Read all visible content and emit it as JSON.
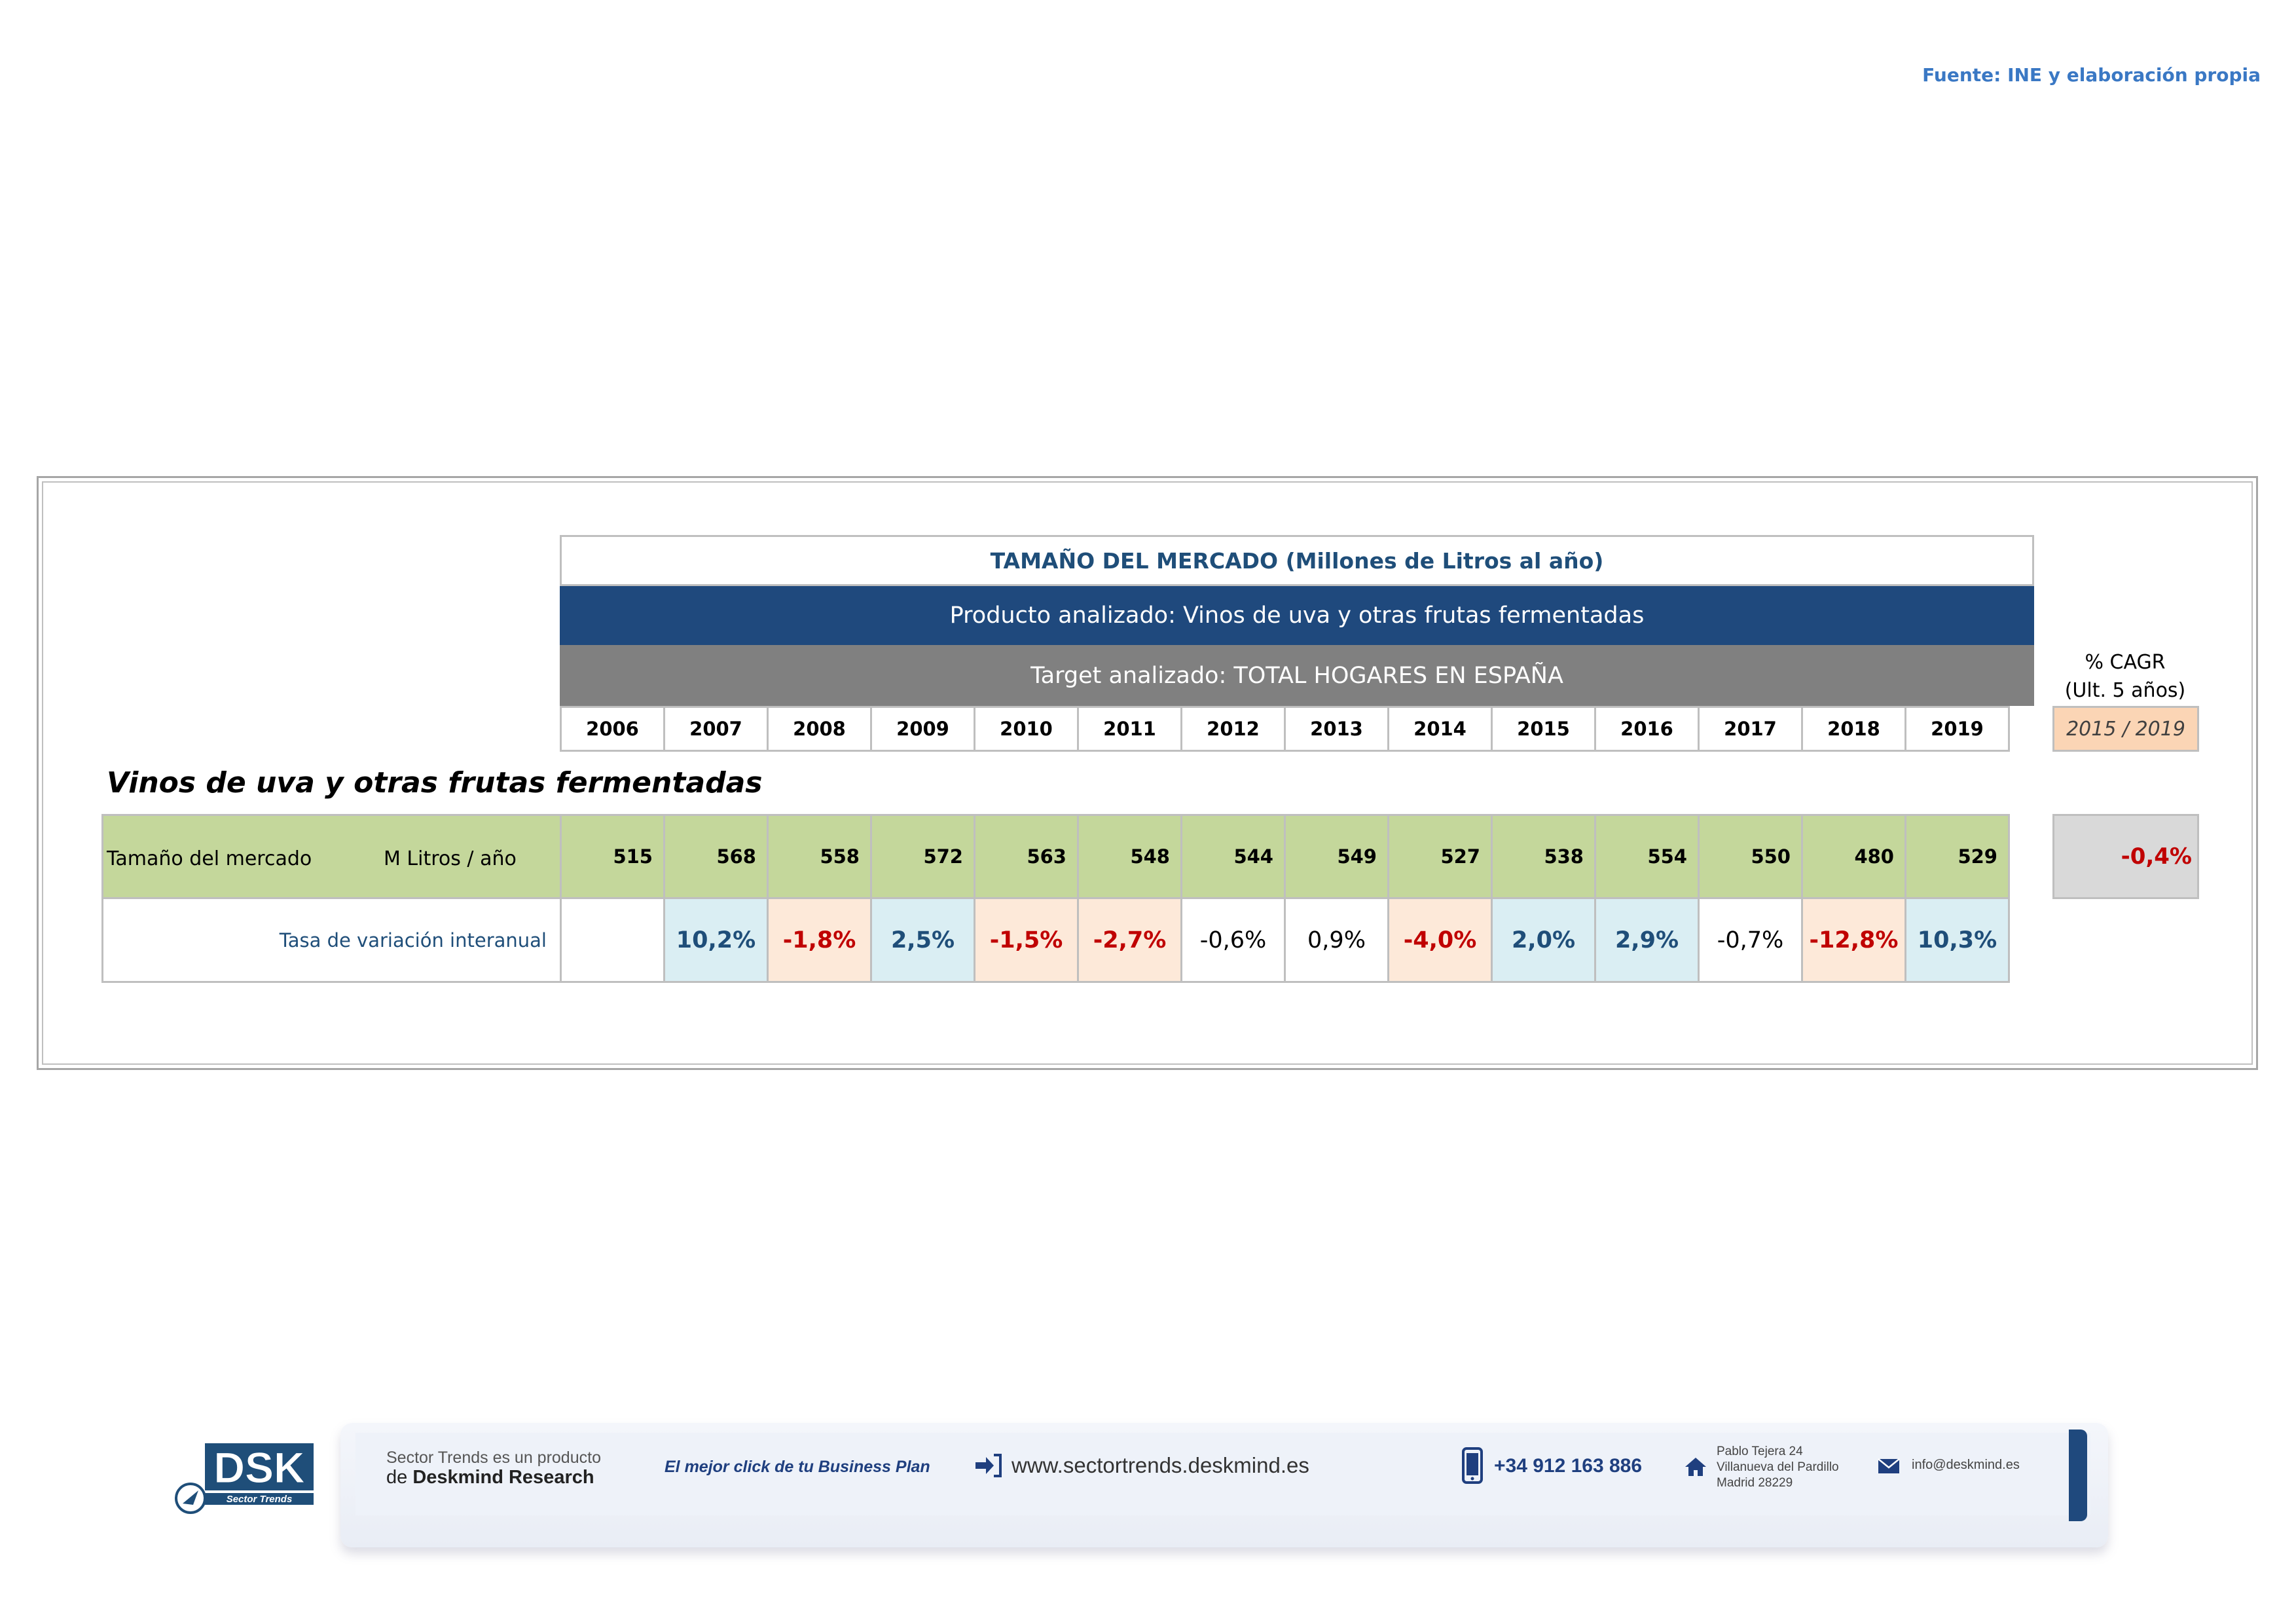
{
  "source": "Fuente: INE y elaboración propia",
  "table": {
    "title": "TAMAÑO DEL MERCADO (Millones de Litros al año)",
    "product": "Producto analizado: Vinos de uva y otras frutas fermentadas",
    "target": "Target analizado: TOTAL HOGARES EN ESPAÑA",
    "years": [
      "2006",
      "2007",
      "2008",
      "2009",
      "2010",
      "2011",
      "2012",
      "2013",
      "2014",
      "2015",
      "2016",
      "2017",
      "2018",
      "2019"
    ],
    "cagr_label_line1": "% CAGR",
    "cagr_label_line2": "(Ult. 5 años)",
    "cagr_period": "2015 / 2019",
    "section_title": "Vinos de uva y otras frutas fermentadas",
    "size_row": {
      "label": "Tamaño del mercado",
      "unit": "M Litros / año",
      "values": [
        "515",
        "568",
        "558",
        "572",
        "563",
        "548",
        "544",
        "549",
        "527",
        "538",
        "554",
        "550",
        "480",
        "529"
      ],
      "cagr": "-0,4%"
    },
    "variation_row": {
      "label": "Tasa de variación interanual",
      "values": [
        {
          "text": "",
          "kind": "empty"
        },
        {
          "text": "10,2%",
          "kind": "pos"
        },
        {
          "text": "-1,8%",
          "kind": "neg"
        },
        {
          "text": "2,5%",
          "kind": "pos"
        },
        {
          "text": "-1,5%",
          "kind": "neg"
        },
        {
          "text": "-2,7%",
          "kind": "neg"
        },
        {
          "text": "-0,6%",
          "kind": "neutral"
        },
        {
          "text": "0,9%",
          "kind": "neutral"
        },
        {
          "text": "-4,0%",
          "kind": "neg"
        },
        {
          "text": "2,0%",
          "kind": "pos"
        },
        {
          "text": "2,9%",
          "kind": "pos"
        },
        {
          "text": "-0,7%",
          "kind": "neutral"
        },
        {
          "text": "-12,8%",
          "kind": "neg"
        },
        {
          "text": "10,3%",
          "kind": "pos"
        }
      ]
    }
  },
  "footer": {
    "logo_text": "DSK",
    "logo_subtext": "Sector Trends",
    "product_line": "Sector Trends es un producto",
    "company_prefix": "de",
    "company": "Deskmind Research",
    "slogan": "El mejor click de tu Business Plan",
    "website": "www.sectortrends.deskmind.es",
    "phone": "+34 912 163 886",
    "address_lines": [
      "Pablo Tejera 24",
      "Villanueva del Pardillo",
      "Madrid 28229"
    ],
    "email": "info@deskmind.es",
    "icons": [
      "enter-arrow-icon",
      "smartphone-icon",
      "home-icon",
      "envelope-icon"
    ]
  },
  "colors": {
    "title_text": "#1f4e79",
    "product_band": "#1f497d",
    "target_band": "#808080",
    "size_row_bg": "#c4d79b",
    "positive_bg": "#daeef3",
    "negative_bg": "#fde9d9",
    "negative_text": "#c00000",
    "cagr_period_bg": "#fbd5b5",
    "cagr_value_bg": "#d9d9d9",
    "source_text": "#3a78c4"
  }
}
